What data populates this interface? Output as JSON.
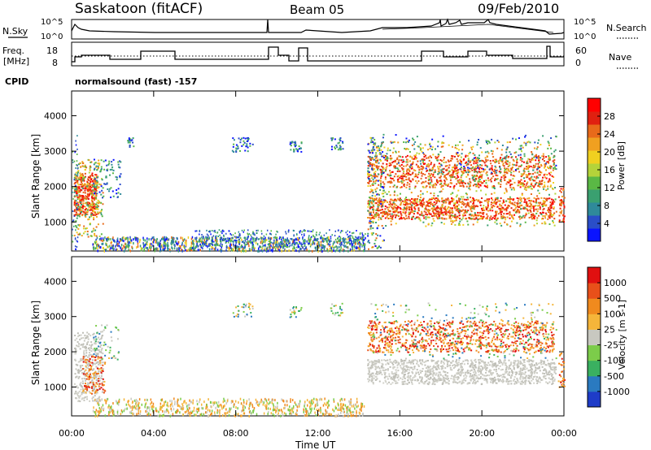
{
  "header": {
    "station": "Saskatoon (fitACF)",
    "beam": "Beam 05",
    "date": "09/Feb/2010"
  },
  "top_panels": {
    "nsky_label": "N.Sky",
    "nsky_ticks": [
      "10^5",
      "10^0"
    ],
    "nsearch_label": "N.Search",
    "nsearch_ticks": [
      "10^5",
      "10^0"
    ],
    "freq_label": "Freq.",
    "freq_unit": "[MHz]",
    "freq_ticks": [
      "18",
      "8"
    ],
    "nave_label": "Nave",
    "nave_ticks": [
      "60",
      "0"
    ],
    "cpid_label": "CPID",
    "cpid_value": "normalsound (fast) -157"
  },
  "chart_data": [
    {
      "type": "heatmap",
      "title": "",
      "quantity": "Power",
      "xlabel": "",
      "ylabel": "Slant Range [km]",
      "x_ticks": [
        "00:00",
        "04:00",
        "08:00",
        "12:00",
        "16:00",
        "20:00",
        "00:00"
      ],
      "y_ticks": [
        "1000",
        "2000",
        "3000",
        "4000"
      ],
      "ylim": [
        180,
        4700
      ],
      "colorbar_label": "Power [dB]",
      "colorbar_ticks": [
        "4",
        "8",
        "12",
        "16",
        "20",
        "24",
        "28"
      ],
      "colorbar_colors": [
        "#0a14ff",
        "#2a4ec8",
        "#2f8a9a",
        "#3aa070",
        "#5ab845",
        "#b4d33a",
        "#f0d020",
        "#f0a020",
        "#e86a1a",
        "#e02010",
        "#ff0000"
      ]
    },
    {
      "type": "heatmap",
      "title": "",
      "quantity": "Velocity",
      "xlabel": "Time UT",
      "ylabel": "Slant Range [km]",
      "x_ticks": [
        "00:00",
        "04:00",
        "08:00",
        "12:00",
        "16:00",
        "20:00",
        "00:00"
      ],
      "y_ticks": [
        "1000",
        "2000",
        "3000",
        "4000"
      ],
      "ylim": [
        180,
        4700
      ],
      "colorbar_label": "Velocity [m s-1]",
      "colorbar_ticks": [
        "1000",
        "500",
        "100",
        "25",
        "-25",
        "-100",
        "-500",
        "-1000"
      ],
      "colorbar_colors": [
        "#1e3cc8",
        "#2a7ac0",
        "#3ab060",
        "#7ccc4a",
        "#c8c8c0",
        "#f5b53a",
        "#f08a1e",
        "#e8501a",
        "#e01010"
      ]
    }
  ]
}
